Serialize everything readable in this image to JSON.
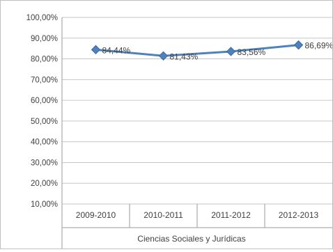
{
  "chart_data": {
    "type": "line",
    "categories": [
      "2009-2010",
      "2010-2011",
      "2011-2012",
      "2012-2013"
    ],
    "group_label": "Ciencias Sociales y Jurídicas",
    "series": [
      {
        "values": [
          84.44,
          81.43,
          83.56,
          86.69
        ],
        "value_labels": [
          "84,44%",
          "81,43%",
          "83,56%",
          "86,69%"
        ],
        "color": "#4f81bd"
      }
    ],
    "y_ticks": [
      "10,00%",
      "20,00%",
      "30,00%",
      "40,00%",
      "50,00%",
      "60,00%",
      "70,00%",
      "80,00%",
      "90,00%",
      "100,00%"
    ],
    "ylim": [
      10,
      100
    ],
    "grid": true,
    "legend": "none",
    "title": "",
    "xlabel": "",
    "ylabel": ""
  }
}
